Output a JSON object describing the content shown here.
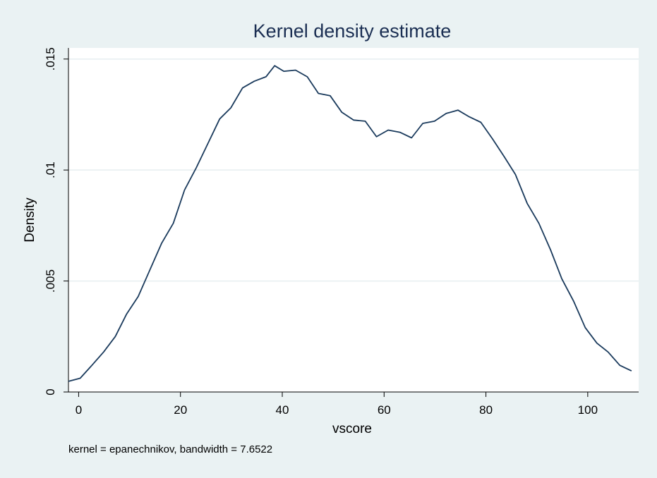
{
  "chart_data": {
    "type": "line",
    "title": "Kernel density estimate",
    "xlabel": "vscore",
    "ylabel": "Density",
    "note": "kernel = epanechnikov, bandwidth = 7.6522",
    "xlim": [
      -2,
      110
    ],
    "ylim": [
      0,
      0.0155
    ],
    "x_ticks": [
      0,
      20,
      40,
      60,
      80,
      100
    ],
    "x_tick_labels": [
      "0",
      "20",
      "40",
      "60",
      "80",
      "100"
    ],
    "y_ticks": [
      0,
      0.005,
      0.01,
      0.015
    ],
    "y_tick_labels": [
      "0",
      ".005",
      ".01",
      ".015"
    ],
    "grid": "horizontal",
    "series": [
      {
        "color": "#1a3a5c",
        "x": [
          -2,
          0.3,
          2.6,
          4.9,
          7.2,
          9.4,
          11.7,
          14,
          16.3,
          18.6,
          20.8,
          23.1,
          25.4,
          27.7,
          29.9,
          32.2,
          34.5,
          36.8,
          38.5,
          40.3,
          42.6,
          44.9,
          47.1,
          49.4,
          51.7,
          54,
          56.3,
          58.5,
          60.8,
          63.1,
          65.4,
          67.6,
          69.9,
          72.2,
          74.5,
          76.7,
          79,
          81.3,
          83.6,
          85.8,
          88.1,
          90.4,
          92.7,
          94.9,
          97.2,
          99.5,
          101.8,
          104,
          106.3,
          108.6
        ],
        "y": [
          0.00048,
          0.00062,
          0.0012,
          0.0018,
          0.0025,
          0.0035,
          0.0043,
          0.0055,
          0.0067,
          0.0076,
          0.0091,
          0.0101,
          0.0112,
          0.0123,
          0.0128,
          0.0137,
          0.014,
          0.0142,
          0.0147,
          0.01445,
          0.0145,
          0.0142,
          0.01345,
          0.01335,
          0.0126,
          0.01225,
          0.0122,
          0.0115,
          0.0118,
          0.0117,
          0.01145,
          0.0121,
          0.0122,
          0.01255,
          0.0127,
          0.0124,
          0.01215,
          0.0114,
          0.0106,
          0.0098,
          0.0085,
          0.0076,
          0.0064,
          0.0051,
          0.0041,
          0.0029,
          0.0022,
          0.0018,
          0.0012,
          0.00095
        ]
      }
    ]
  },
  "colors": {
    "page_background": "#eaf2f3",
    "plot_background": "#ffffff",
    "title": "#1a2e52",
    "grid": "#e6eef0",
    "line": "#1a3a5c"
  }
}
